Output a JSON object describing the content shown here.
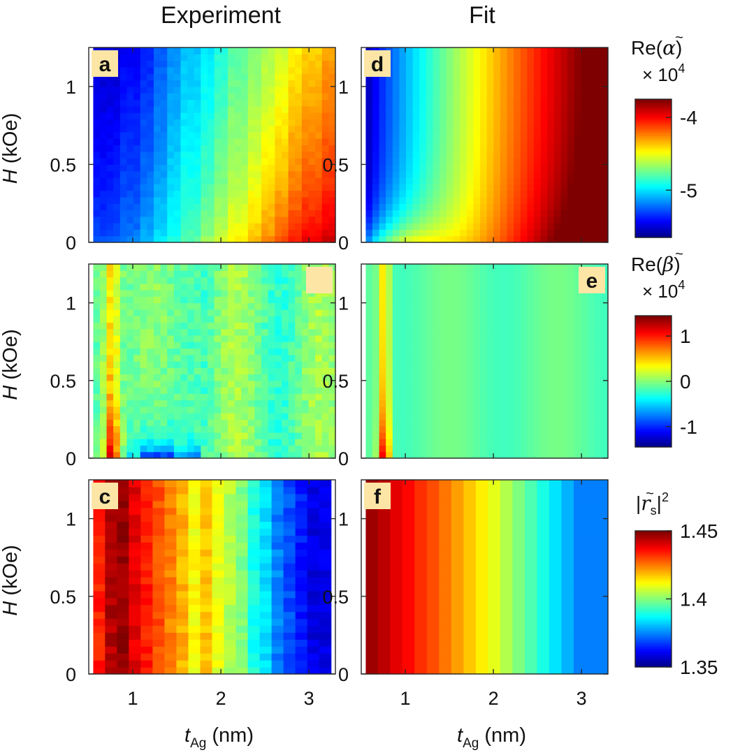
{
  "figure": {
    "column_titles": [
      "Experiment",
      "Fit"
    ]
  },
  "chart_data": [
    {
      "type": "heatmap",
      "panel": "a",
      "label": "a",
      "show_label_text": true,
      "x_ticks": [
        "1",
        "2",
        "3"
      ],
      "y_ticks": [
        "0",
        "0.5",
        "1"
      ],
      "xlim": [
        0.5,
        3.3
      ],
      "ylim": [
        0,
        1.25
      ],
      "xlabel": "",
      "ylabel": "H (kOe)",
      "colorbar": "alpha",
      "description_of_values": "Re(alpha) x 1e4, increases with t_Ag; lowest near t=0.7",
      "columns_value_at_top": [
        -5.5,
        -5.5,
        -5.42,
        -5.35,
        -5.25,
        -5.15,
        -5.05,
        -4.98,
        -4.88,
        -4.78,
        -4.7,
        -4.62,
        -4.55,
        -4.45,
        -4.38,
        -4.3
      ],
      "columns_value_at_bottom": [
        -5.25,
        -5.22,
        -5.15,
        -5.05,
        -4.95,
        -4.85,
        -4.75,
        -4.62,
        -4.52,
        -4.42,
        -4.3,
        -4.2,
        -4.1,
        -4.0,
        -3.92,
        -3.85
      ]
    },
    {
      "type": "heatmap",
      "panel": "b",
      "label": "",
      "show_label_text": false,
      "x_ticks": [
        "1",
        "2",
        "3"
      ],
      "y_ticks": [
        "0",
        "0.5",
        "1"
      ],
      "xlim": [
        0.5,
        3.3
      ],
      "ylim": [
        0,
        1.25
      ],
      "xlabel": "",
      "ylabel": "H (kOe)",
      "colorbar": "beta",
      "description_of_values": "Re(beta) x 1e4, mostly ~0; peak ~1.2 near t=0.75 at low H; negative ~ -0.6 near t=1.2-1.6 at H~0"
    },
    {
      "type": "heatmap",
      "panel": "c",
      "label": "c",
      "show_label_text": true,
      "x_ticks": [
        "1",
        "2",
        "3"
      ],
      "y_ticks": [
        "0",
        "0.5",
        "1"
      ],
      "xlim": [
        0.5,
        3.3
      ],
      "ylim": [
        0,
        1.25
      ],
      "xlabel": "t_Ag (nm)",
      "ylabel": "H (kOe)",
      "colorbar": "rs",
      "columns": [
        1.435,
        1.445,
        1.448,
        1.44,
        1.435,
        1.43,
        1.425,
        1.42,
        1.412,
        1.418,
        1.41,
        1.405,
        1.4,
        1.39,
        1.385,
        1.375,
        1.37,
        1.365,
        1.36,
        1.36
      ]
    },
    {
      "type": "heatmap",
      "panel": "d",
      "label": "d",
      "show_label_text": true,
      "x_ticks": [
        "1",
        "2",
        "3"
      ],
      "y_ticks": [
        "0",
        "0.5",
        "1"
      ],
      "xlim": [
        0.5,
        3.3
      ],
      "ylim": [
        0,
        1.25
      ],
      "xlabel": "",
      "ylabel": "",
      "colorbar": "alpha",
      "description_of_values": "Fit of Re(alpha) x 1e4, smooth increase with t_Ag, max ~-3.8 at t=3.2"
    },
    {
      "type": "heatmap",
      "panel": "e",
      "label": "e",
      "show_label_text": true,
      "x_ticks": [
        "1",
        "2",
        "3"
      ],
      "y_ticks": [
        "0",
        "0.5",
        "1"
      ],
      "xlim": [
        0.5,
        3.3
      ],
      "ylim": [
        0,
        1.25
      ],
      "xlabel": "",
      "ylabel": "",
      "colorbar": "beta",
      "description_of_values": "Fit of Re(beta) x 1e4, ~0 with peak ~1.2 at t=0.75 low H"
    },
    {
      "type": "heatmap",
      "panel": "f",
      "label": "f",
      "show_label_text": true,
      "x_ticks": [
        "1",
        "2",
        "3"
      ],
      "y_ticks": [
        "0",
        "0.5",
        "1"
      ],
      "xlim": [
        0.5,
        3.3
      ],
      "ylim": [
        0,
        1.25
      ],
      "xlabel": "t_Ag (nm)",
      "ylabel": "",
      "colorbar": "rs",
      "columns": [
        1.447,
        1.444,
        1.44,
        1.437,
        1.433,
        1.43,
        1.426,
        1.422,
        1.418,
        1.414,
        1.41,
        1.405,
        1.4,
        1.395,
        1.39,
        1.385,
        1.38,
        1.375
      ]
    }
  ],
  "colorbars": {
    "alpha": {
      "title_prefix": "Re",
      "title_symbol": "α",
      "scale": "× 10",
      "scale_exp": "4",
      "ticks": [
        "-4",
        "-5"
      ],
      "tick_values": [
        -4,
        -5
      ],
      "range": [
        -5.65,
        -3.75
      ]
    },
    "beta": {
      "title_prefix": "Re",
      "title_symbol": "β",
      "scale": "× 10",
      "scale_exp": "4",
      "ticks": [
        "1",
        "0",
        "-1"
      ],
      "tick_values": [
        1,
        0,
        -1
      ],
      "range": [
        -1.45,
        1.45
      ]
    },
    "rs": {
      "title_symbol": "r",
      "title_sub": "s",
      "title_exp": "2",
      "ticks": [
        "1.45",
        "1.4",
        "1.35"
      ],
      "tick_values": [
        1.45,
        1.4,
        1.35
      ],
      "range": [
        1.35,
        1.45
      ]
    }
  },
  "axis_labels": {
    "y_italic": "H",
    "y_rest": " (kOe)",
    "x_italic": "t",
    "x_sub": "Ag",
    "x_rest": " (nm)"
  },
  "colors": {
    "jet": [
      "#00007f",
      "#0000ff",
      "#007fff",
      "#00ffff",
      "#7fff7f",
      "#ffff00",
      "#ff7f00",
      "#ff0000",
      "#7f0000"
    ],
    "label_bg": "#fde6a5"
  }
}
